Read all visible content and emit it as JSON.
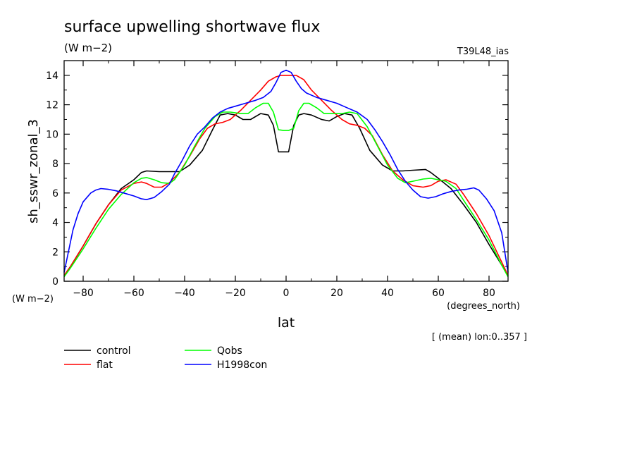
{
  "chart_data": {
    "type": "line",
    "title": "surface upwelling shortwave flux",
    "units": "(W m−2)",
    "run_label": "T39L48_ias",
    "xlabel": "lat",
    "x_units": "(degrees_north)",
    "ylabel": "sh_sswr_zonal_3",
    "y_units": "(W m−2)",
    "averaging_note": "[ (mean) lon:0..357 ]",
    "xlim": [
      -87.5,
      87.5
    ],
    "ylim": [
      0,
      15
    ],
    "x_ticks": [
      -80,
      -60,
      -40,
      -20,
      0,
      20,
      40,
      60,
      80
    ],
    "x_tick_labels": [
      "−80",
      "−60",
      "−40",
      "−20",
      "0",
      "20",
      "40",
      "60",
      "80"
    ],
    "y_ticks": [
      0,
      2,
      4,
      6,
      8,
      10,
      12,
      14
    ],
    "y_tick_labels": [
      "0",
      "2",
      "4",
      "6",
      "8",
      "10",
      "12",
      "14"
    ],
    "grid": false,
    "legend_position": "bottom-left",
    "series": [
      {
        "name": "control",
        "color": "#000000",
        "points": [
          [
            -87.5,
            0.4
          ],
          [
            -85,
            1.0
          ],
          [
            -80,
            2.4
          ],
          [
            -75,
            3.9
          ],
          [
            -70,
            5.2
          ],
          [
            -65,
            6.3
          ],
          [
            -60,
            6.9
          ],
          [
            -57,
            7.4
          ],
          [
            -55,
            7.5
          ],
          [
            -50,
            7.45
          ],
          [
            -45,
            7.45
          ],
          [
            -42,
            7.45
          ],
          [
            -38,
            7.9
          ],
          [
            -33,
            8.9
          ],
          [
            -29,
            10.3
          ],
          [
            -26,
            11.3
          ],
          [
            -23,
            11.4
          ],
          [
            -20,
            11.3
          ],
          [
            -17,
            11.0
          ],
          [
            -14,
            11.0
          ],
          [
            -10,
            11.4
          ],
          [
            -7,
            11.3
          ],
          [
            -5,
            10.6
          ],
          [
            -3,
            8.8
          ],
          [
            -1,
            8.8
          ],
          [
            1,
            8.8
          ],
          [
            3,
            10.6
          ],
          [
            5,
            11.3
          ],
          [
            7,
            11.4
          ],
          [
            10,
            11.3
          ],
          [
            14,
            11.0
          ],
          [
            17,
            10.9
          ],
          [
            20,
            11.2
          ],
          [
            23,
            11.4
          ],
          [
            26,
            11.3
          ],
          [
            29,
            10.4
          ],
          [
            33,
            8.9
          ],
          [
            38,
            7.9
          ],
          [
            42,
            7.5
          ],
          [
            46,
            7.5
          ],
          [
            50,
            7.55
          ],
          [
            55,
            7.6
          ],
          [
            57,
            7.4
          ],
          [
            60,
            7.0
          ],
          [
            65,
            6.3
          ],
          [
            70,
            5.2
          ],
          [
            75,
            4.0
          ],
          [
            80,
            2.5
          ],
          [
            85,
            1.1
          ],
          [
            87.5,
            0.4
          ]
        ]
      },
      {
        "name": "flat",
        "color": "#ff0000",
        "points": [
          [
            -87.5,
            0.4
          ],
          [
            -85,
            1.0
          ],
          [
            -80,
            2.4
          ],
          [
            -75,
            3.9
          ],
          [
            -70,
            5.2
          ],
          [
            -65,
            6.2
          ],
          [
            -60,
            6.65
          ],
          [
            -57,
            6.75
          ],
          [
            -55,
            6.65
          ],
          [
            -52,
            6.4
          ],
          [
            -49,
            6.4
          ],
          [
            -46,
            6.7
          ],
          [
            -42,
            7.4
          ],
          [
            -38,
            8.5
          ],
          [
            -34,
            9.7
          ],
          [
            -31,
            10.4
          ],
          [
            -28,
            10.7
          ],
          [
            -25,
            10.8
          ],
          [
            -22,
            11.0
          ],
          [
            -18,
            11.6
          ],
          [
            -14,
            12.3
          ],
          [
            -10,
            13.0
          ],
          [
            -7,
            13.6
          ],
          [
            -4,
            13.9
          ],
          [
            -2,
            14.0
          ],
          [
            0,
            14.0
          ],
          [
            2,
            14.0
          ],
          [
            4,
            14.0
          ],
          [
            7,
            13.7
          ],
          [
            10,
            13.0
          ],
          [
            14,
            12.3
          ],
          [
            18,
            11.6
          ],
          [
            22,
            11.0
          ],
          [
            25,
            10.7
          ],
          [
            28,
            10.6
          ],
          [
            31,
            10.4
          ],
          [
            34,
            9.9
          ],
          [
            38,
            8.6
          ],
          [
            42,
            7.5
          ],
          [
            46,
            6.9
          ],
          [
            50,
            6.5
          ],
          [
            54,
            6.4
          ],
          [
            57,
            6.5
          ],
          [
            60,
            6.8
          ],
          [
            63,
            6.9
          ],
          [
            67,
            6.6
          ],
          [
            70,
            5.9
          ],
          [
            75,
            4.6
          ],
          [
            80,
            3.1
          ],
          [
            85,
            1.3
          ],
          [
            87.5,
            0.4
          ]
        ]
      },
      {
        "name": "Qobs",
        "color": "#00ff00",
        "points": [
          [
            -87.5,
            0.3
          ],
          [
            -85,
            0.9
          ],
          [
            -80,
            2.2
          ],
          [
            -75,
            3.6
          ],
          [
            -70,
            4.9
          ],
          [
            -65,
            5.9
          ],
          [
            -60,
            6.7
          ],
          [
            -57,
            7.0
          ],
          [
            -55,
            7.05
          ],
          [
            -52,
            6.9
          ],
          [
            -49,
            6.7
          ],
          [
            -46,
            6.65
          ],
          [
            -44,
            6.9
          ],
          [
            -40,
            7.9
          ],
          [
            -36,
            9.2
          ],
          [
            -32,
            10.4
          ],
          [
            -28,
            11.2
          ],
          [
            -25,
            11.5
          ],
          [
            -22,
            11.5
          ],
          [
            -18,
            11.4
          ],
          [
            -15,
            11.4
          ],
          [
            -12,
            11.8
          ],
          [
            -9,
            12.1
          ],
          [
            -7,
            12.1
          ],
          [
            -5,
            11.5
          ],
          [
            -3,
            10.3
          ],
          [
            -1,
            10.25
          ],
          [
            1,
            10.25
          ],
          [
            3,
            10.4
          ],
          [
            5,
            11.6
          ],
          [
            7,
            12.1
          ],
          [
            9,
            12.1
          ],
          [
            12,
            11.8
          ],
          [
            15,
            11.4
          ],
          [
            18,
            11.4
          ],
          [
            22,
            11.4
          ],
          [
            25,
            11.5
          ],
          [
            28,
            11.4
          ],
          [
            32,
            10.5
          ],
          [
            36,
            9.2
          ],
          [
            40,
            7.9
          ],
          [
            44,
            7.0
          ],
          [
            47,
            6.7
          ],
          [
            50,
            6.8
          ],
          [
            54,
            6.95
          ],
          [
            57,
            7.0
          ],
          [
            60,
            6.9
          ],
          [
            63,
            6.8
          ],
          [
            67,
            6.3
          ],
          [
            70,
            5.5
          ],
          [
            75,
            4.2
          ],
          [
            80,
            2.8
          ],
          [
            85,
            1.1
          ],
          [
            87.5,
            0.3
          ]
        ]
      },
      {
        "name": "H1998con",
        "color": "#0000ff",
        "points": [
          [
            -87.5,
            0.6
          ],
          [
            -84,
            3.5
          ],
          [
            -82,
            4.6
          ],
          [
            -80,
            5.4
          ],
          [
            -77,
            6.0
          ],
          [
            -75,
            6.2
          ],
          [
            -73,
            6.3
          ],
          [
            -70,
            6.25
          ],
          [
            -67,
            6.15
          ],
          [
            -64,
            6.0
          ],
          [
            -60,
            5.8
          ],
          [
            -57,
            5.6
          ],
          [
            -55,
            5.55
          ],
          [
            -52,
            5.7
          ],
          [
            -49,
            6.1
          ],
          [
            -46,
            6.6
          ],
          [
            -44,
            7.3
          ],
          [
            -41,
            8.2
          ],
          [
            -38,
            9.2
          ],
          [
            -35,
            10.0
          ],
          [
            -32,
            10.5
          ],
          [
            -29,
            11.1
          ],
          [
            -26,
            11.5
          ],
          [
            -23,
            11.75
          ],
          [
            -20,
            11.9
          ],
          [
            -16,
            12.1
          ],
          [
            -12,
            12.3
          ],
          [
            -9,
            12.5
          ],
          [
            -6,
            12.9
          ],
          [
            -4,
            13.5
          ],
          [
            -2,
            14.2
          ],
          [
            0,
            14.35
          ],
          [
            2,
            14.2
          ],
          [
            4,
            13.6
          ],
          [
            6,
            13.1
          ],
          [
            8,
            12.8
          ],
          [
            12,
            12.5
          ],
          [
            16,
            12.3
          ],
          [
            20,
            12.1
          ],
          [
            24,
            11.8
          ],
          [
            28,
            11.5
          ],
          [
            32,
            11.0
          ],
          [
            35,
            10.3
          ],
          [
            38,
            9.5
          ],
          [
            41,
            8.6
          ],
          [
            44,
            7.6
          ],
          [
            47,
            6.8
          ],
          [
            50,
            6.2
          ],
          [
            53,
            5.75
          ],
          [
            56,
            5.65
          ],
          [
            59,
            5.75
          ],
          [
            62,
            5.95
          ],
          [
            65,
            6.1
          ],
          [
            68,
            6.2
          ],
          [
            71,
            6.25
          ],
          [
            74,
            6.35
          ],
          [
            76,
            6.2
          ],
          [
            79,
            5.6
          ],
          [
            82,
            4.8
          ],
          [
            85,
            3.3
          ],
          [
            87.5,
            0.6
          ]
        ]
      }
    ]
  }
}
